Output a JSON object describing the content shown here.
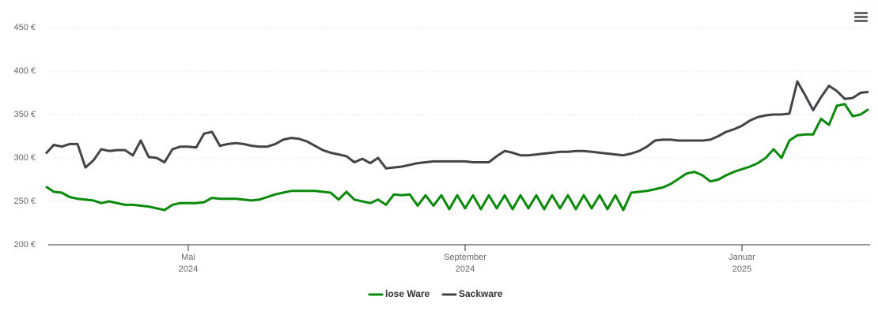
{
  "chart_data": {
    "type": "line",
    "categories": [
      null,
      null,
      null,
      null,
      null,
      null,
      null,
      null,
      null,
      null,
      null,
      null,
      null,
      null,
      null,
      null,
      null,
      null,
      "Mai 2024",
      null,
      null,
      null,
      null,
      null,
      null,
      null,
      null,
      null,
      null,
      null,
      null,
      null,
      null,
      null,
      null,
      null,
      null,
      null,
      null,
      null,
      null,
      null,
      null,
      null,
      null,
      null,
      null,
      null,
      null,
      null,
      null,
      null,
      null,
      "September 2024",
      null,
      null,
      null,
      null,
      null,
      null,
      null,
      null,
      null,
      null,
      null,
      null,
      null,
      null,
      null,
      null,
      null,
      null,
      null,
      null,
      null,
      null,
      null,
      null,
      null,
      null,
      null,
      null,
      null,
      null,
      null,
      null,
      null,
      null,
      "Januar 2025",
      null,
      null,
      null,
      null,
      null,
      null,
      null,
      null,
      null,
      null,
      null,
      null,
      null,
      null,
      null,
      null
    ],
    "series": [
      {
        "name": "lose Ware",
        "color": "#0a8a0a",
        "values": [
          267,
          261,
          260,
          255,
          253,
          252,
          251,
          248,
          250,
          248,
          246,
          246,
          245,
          244,
          242,
          240,
          246,
          248,
          248,
          248,
          249,
          254,
          253,
          253,
          253,
          252,
          251,
          252,
          255,
          258,
          260,
          262,
          262,
          262,
          262,
          261,
          260,
          252,
          261,
          252,
          250,
          248,
          252,
          246,
          258,
          257,
          258,
          245,
          257,
          245,
          257,
          241,
          257,
          242,
          257,
          241,
          257,
          242,
          257,
          241,
          257,
          242,
          257,
          241,
          257,
          242,
          257,
          241,
          257,
          242,
          257,
          241,
          257,
          240,
          260,
          261,
          262,
          264,
          266,
          270,
          276,
          282,
          284,
          280,
          273,
          275,
          280,
          284,
          287,
          290,
          294,
          300,
          310,
          300,
          320,
          326,
          327,
          327,
          345,
          338,
          360,
          362,
          348,
          350,
          356
        ]
      },
      {
        "name": "Sackware",
        "color": "#434348",
        "values": [
          305,
          315,
          313,
          316,
          316,
          289,
          297,
          310,
          308,
          309,
          309,
          303,
          320,
          301,
          300,
          295,
          310,
          313,
          313,
          312,
          328,
          330,
          314,
          316,
          317,
          316,
          314,
          313,
          313,
          316,
          321,
          323,
          322,
          319,
          314,
          309,
          306,
          304,
          302,
          295,
          299,
          294,
          300,
          288,
          289,
          290,
          292,
          294,
          295,
          296,
          296,
          296,
          296,
          296,
          295,
          295,
          295,
          302,
          308,
          306,
          303,
          303,
          304,
          305,
          306,
          307,
          307,
          308,
          308,
          307,
          306,
          305,
          304,
          303,
          305,
          308,
          313,
          320,
          321,
          321,
          320,
          320,
          320,
          320,
          321,
          325,
          330,
          333,
          337,
          343,
          347,
          349,
          350,
          350,
          351,
          388,
          372,
          355,
          370,
          383,
          377,
          368,
          369,
          375,
          376
        ]
      }
    ],
    "ylim": [
      200,
      450
    ],
    "yticks": [
      {
        "value": 200,
        "label": "200 €"
      },
      {
        "value": 250,
        "label": "250 €"
      },
      {
        "value": 300,
        "label": "300 €"
      },
      {
        "value": 350,
        "label": "350 €"
      },
      {
        "value": 400,
        "label": "400 €"
      },
      {
        "value": 450,
        "label": "450 €"
      }
    ],
    "grid": true
  }
}
